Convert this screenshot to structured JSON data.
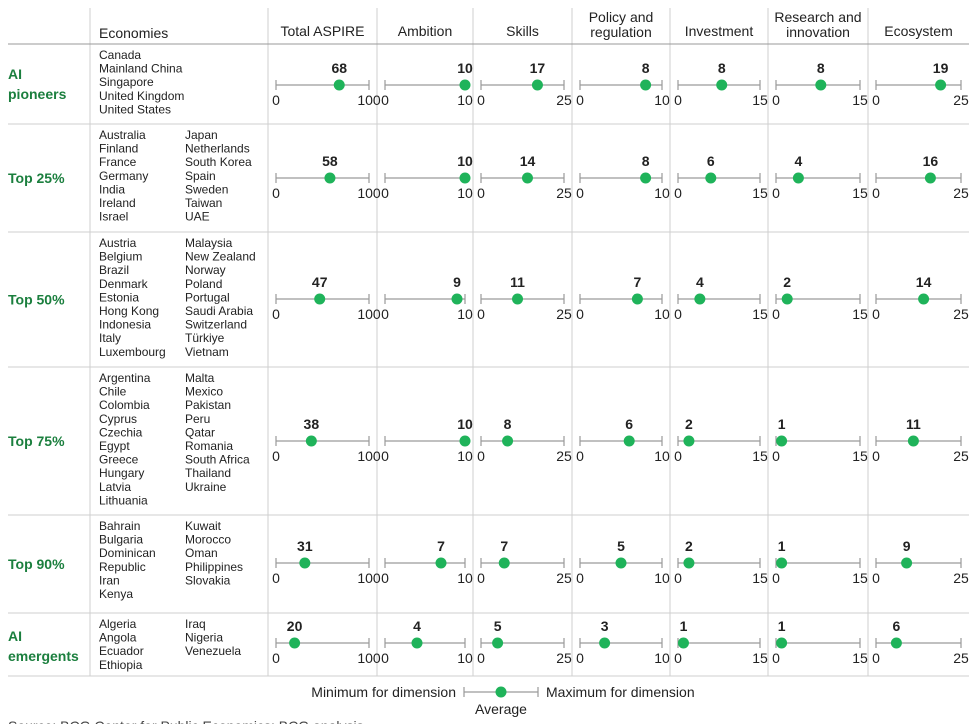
{
  "chart_data": {
    "type": "table",
    "title": "",
    "columns": {
      "economies": "Economies",
      "dimensions": [
        {
          "name": "Total ASPIRE",
          "max": 100
        },
        {
          "name": "Ambition",
          "max": 10
        },
        {
          "name": "Skills",
          "max": 25
        },
        {
          "name": "Policy and\nregulation",
          "max": 10
        },
        {
          "name": "Investment",
          "max": 15
        },
        {
          "name": "Research and\ninnovation",
          "max": 15
        },
        {
          "name": "Ecosystem",
          "max": 25
        }
      ]
    },
    "rows": [
      {
        "group": "AI\npioneers",
        "economies": [
          "Canada",
          "Mainland China",
          "Singapore",
          "United Kingdom",
          "United States"
        ],
        "averages": [
          68,
          10,
          17,
          8,
          8,
          8,
          19
        ]
      },
      {
        "group": "Top 25%",
        "economies": [
          "Australia",
          "Finland",
          "France",
          "Germany",
          "India",
          "Ireland",
          "Israel",
          "Japan",
          "Netherlands",
          "South Korea",
          "Spain",
          "Sweden",
          "Taiwan",
          "UAE"
        ],
        "averages": [
          58,
          10,
          14,
          8,
          6,
          4,
          16
        ]
      },
      {
        "group": "Top 50%",
        "economies": [
          "Austria",
          "Belgium",
          "Brazil",
          "Denmark",
          "Estonia",
          "Hong Kong",
          "Indonesia",
          "Italy",
          "Luxembourg",
          "Malaysia",
          "New Zealand",
          "Norway",
          "Poland",
          "Portugal",
          "Saudi Arabia",
          "Switzerland",
          "Türkiye",
          "Vietnam"
        ],
        "averages": [
          47,
          9,
          11,
          7,
          4,
          2,
          14
        ]
      },
      {
        "group": "Top 75%",
        "economies": [
          "Argentina",
          "Chile",
          "Colombia",
          "Cyprus",
          "Czechia",
          "Egypt",
          "Greece",
          "Hungary",
          "Latvia",
          "Lithuania",
          "Malta",
          "Mexico",
          "Pakistan",
          "Peru",
          "Qatar",
          "Romania",
          "South Africa",
          "Thailand",
          "Ukraine"
        ],
        "averages": [
          38,
          10,
          8,
          6,
          2,
          1,
          11
        ]
      },
      {
        "group": "Top 90%",
        "economies": [
          "Bahrain",
          "Bulgaria",
          "Dominican\n Republic",
          "Iran",
          "Kenya",
          "Kuwait",
          "Morocco",
          "Oman",
          "Philippines",
          "Slovakia"
        ],
        "averages": [
          31,
          7,
          7,
          5,
          2,
          1,
          9
        ]
      },
      {
        "group": "AI\nemergents",
        "economies": [
          "Algeria",
          "Angola",
          "Ecuador",
          "Ethiopia",
          "Iraq",
          "Nigeria",
          "Venezuela"
        ],
        "averages": [
          20,
          4,
          5,
          3,
          1,
          1,
          6
        ]
      }
    ],
    "legend": {
      "min_label": "Minimum for dimension",
      "max_label": "Maximum for dimension",
      "avg_label": "Average"
    },
    "source": "Source: BCG Center for Public Economics; BCG analysis."
  },
  "colors": {
    "green_marker": "#1fb35a",
    "group_text": "#1b7f3e",
    "axis_line": "#9a9a9a",
    "grid_line": "#cfcfcf"
  }
}
